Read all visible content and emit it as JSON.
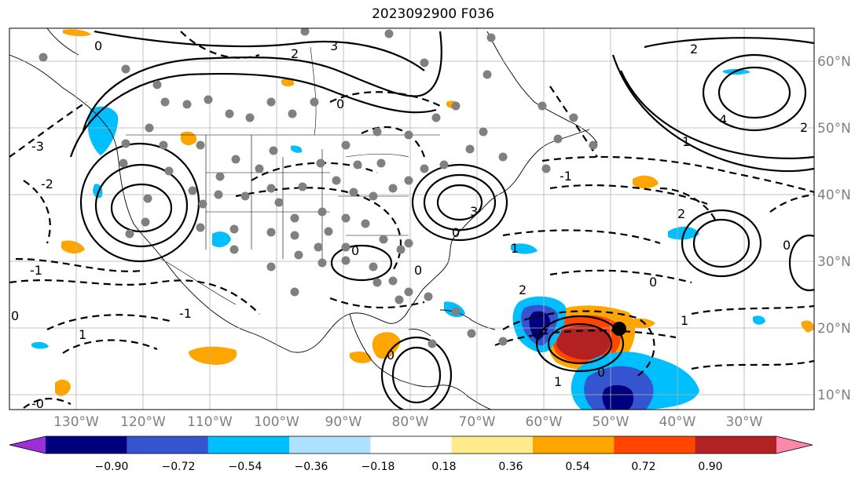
{
  "title": "2023092900 F036",
  "map": {
    "lon_ticks": [
      "130°W",
      "120°W",
      "110°W",
      "100°W",
      "90°W",
      "80°W",
      "70°W",
      "60°W",
      "50°W",
      "40°W",
      "30°W"
    ],
    "lat_ticks": [
      "60°N",
      "50°N",
      "40°N",
      "30°N",
      "20°N",
      "10°N"
    ],
    "axis_label_color": "#808080"
  },
  "contour_labels": [
    "-2",
    "-1",
    "0",
    "1",
    "2",
    "3",
    "4",
    "-3",
    "2",
    "-1",
    "0",
    "1",
    "2",
    "0",
    "-1",
    "-2",
    "-0",
    "1",
    "-2",
    "-0",
    "3",
    "2",
    "1",
    "-1",
    "0"
  ],
  "colorbar": {
    "tick_labels": [
      "−0.90",
      "−0.72",
      "−0.54",
      "−0.36",
      "−0.18",
      "0.18",
      "0.36",
      "0.54",
      "0.72",
      "0.90"
    ],
    "colors": [
      "#9b30d8",
      "#00007f",
      "#3455cf",
      "#00bfff",
      "#aee0ff",
      "#ffffff",
      "#ffea8c",
      "#ffa500",
      "#ff4500",
      "#b22222",
      "#ff88aa"
    ]
  }
}
